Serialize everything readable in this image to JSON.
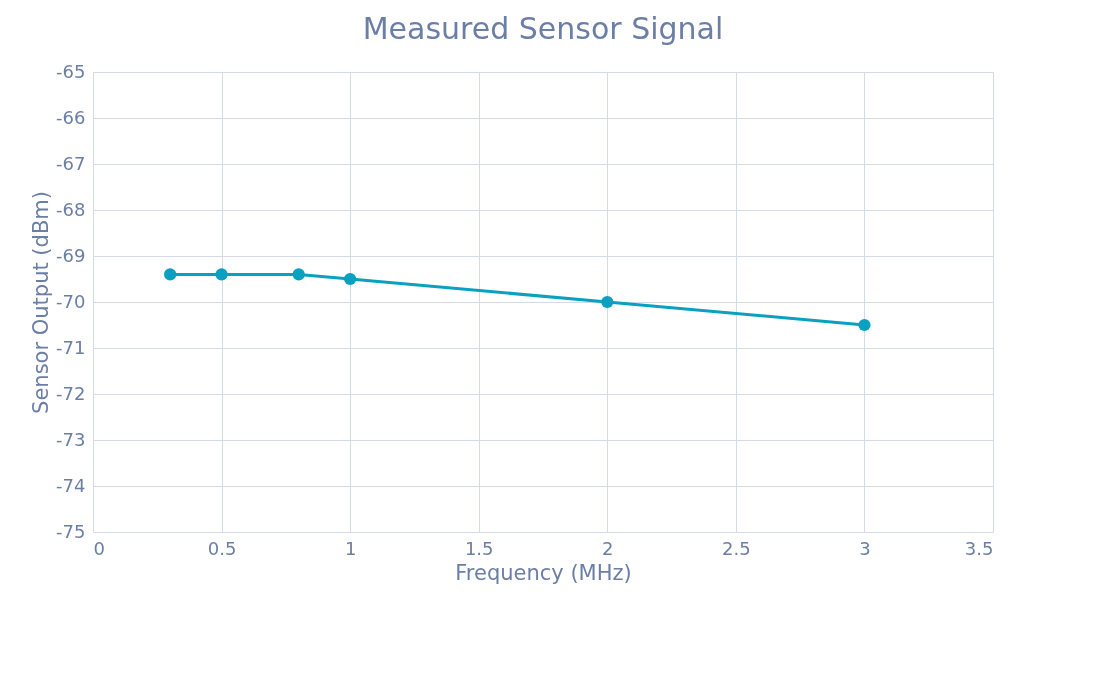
{
  "chart_data": {
    "type": "line",
    "title": "Measured Sensor Signal",
    "xlabel": "Frequency (MHz)",
    "ylabel": "Sensor Output (dBm)",
    "x": [
      0.3,
      0.5,
      0.8,
      1,
      2,
      3
    ],
    "series": [
      {
        "color": "#0aa0bf",
        "values": [
          -69.4,
          -69.4,
          -69.4,
          -69.5,
          -70,
          -70.5
        ]
      }
    ],
    "xlim": [
      0,
      3.5
    ],
    "xticks": [
      0,
      0.5,
      1,
      1.5,
      2,
      2.5,
      3,
      3.5
    ],
    "ylim": [
      -75,
      -65
    ],
    "yticks": [
      -75,
      -74,
      -73,
      -72,
      -71,
      -70,
      -69,
      -68,
      -67,
      -66,
      -65
    ],
    "grid": true,
    "marker": "circle",
    "line_style": "solid"
  }
}
